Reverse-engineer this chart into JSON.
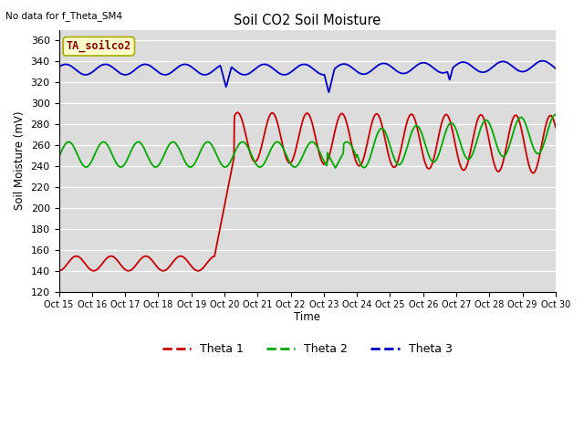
{
  "title": "Soil CO2 Soil Moisture",
  "ylabel": "Soil Moisture (mV)",
  "xlabel": "Time",
  "top_left_text": "No data for f_Theta_SM4",
  "legend_box_text": "TA_soilco2",
  "ylim": [
    120,
    370
  ],
  "yticks": [
    120,
    140,
    160,
    180,
    200,
    220,
    240,
    260,
    280,
    300,
    320,
    340,
    360
  ],
  "x_labels": [
    "Oct 15",
    "Oct 16",
    "Oct 17",
    "Oct 18",
    "Oct 19",
    "Oct 20",
    "Oct 21",
    "Oct 22",
    "Oct 23",
    "Oct 24",
    "Oct 25",
    "Oct 26",
    "Oct 27",
    "Oct 28",
    "Oct 29",
    "Oct 30"
  ],
  "background_color": "#dcdcdc",
  "line_colors": {
    "theta1": "#cc0000",
    "theta2": "#00aa00",
    "theta3": "#0000cc"
  },
  "legend_entries": [
    "Theta 1",
    "Theta 2",
    "Theta 3"
  ],
  "legend_box_facecolor": "#ffffcc",
  "legend_box_edgecolor": "#aaaa00"
}
